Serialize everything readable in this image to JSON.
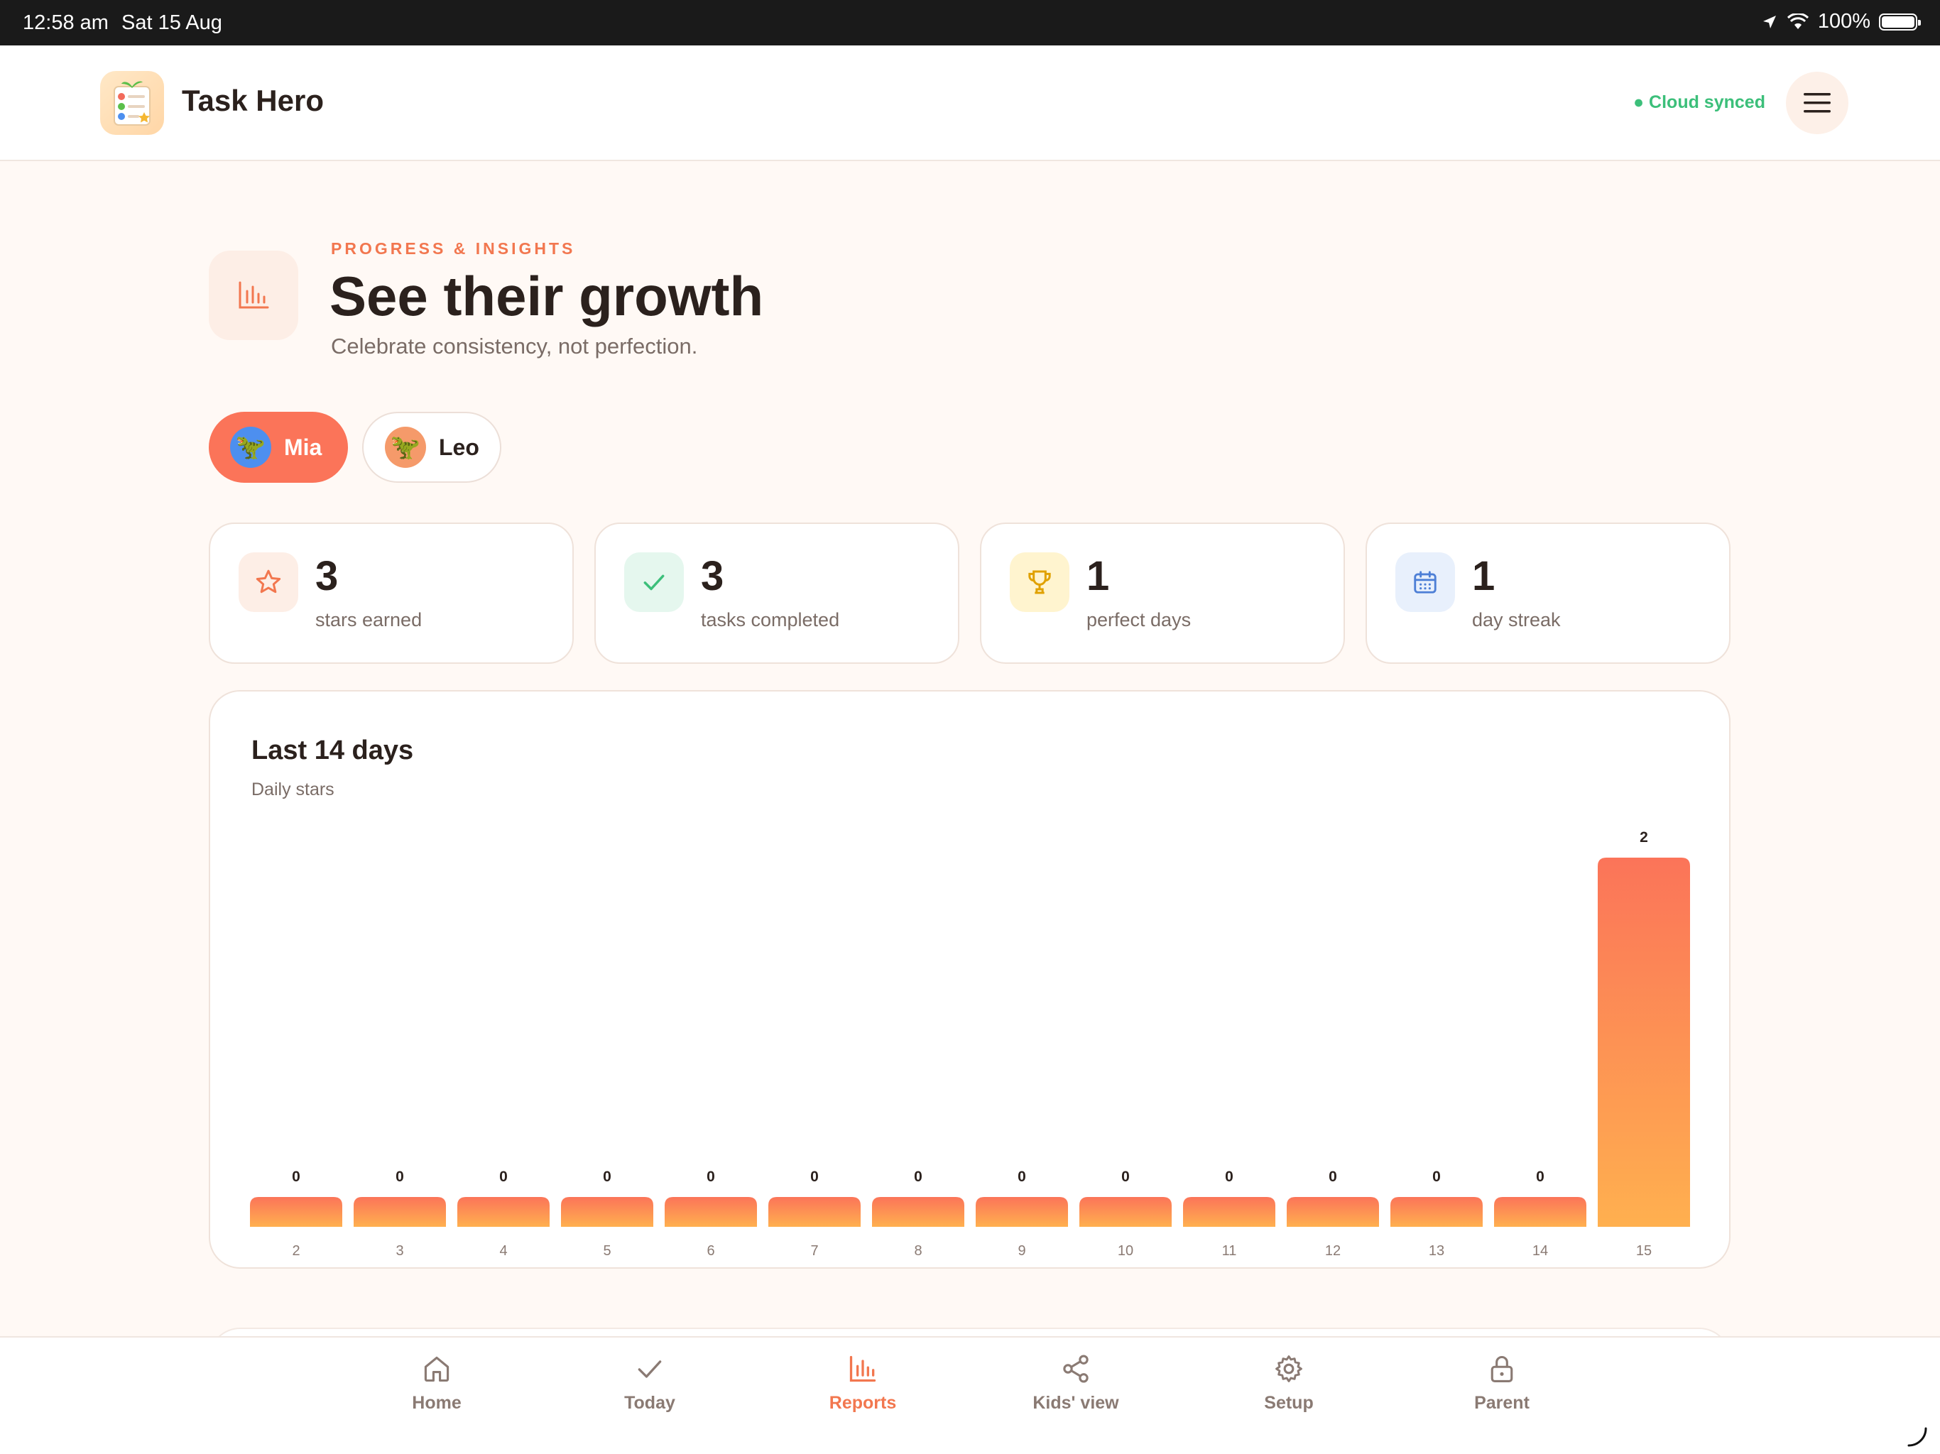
{
  "status_bar": {
    "time": "12:58 am",
    "date": "Sat 15 Aug",
    "battery": "100%",
    "battery_level": 1.0
  },
  "header": {
    "app_name": "Task Hero",
    "sync_status": "● Cloud synced"
  },
  "hero": {
    "eyebrow": "PROGRESS & INSIGHTS",
    "title": "See their growth",
    "subtitle": "Celebrate consistency, not perfection."
  },
  "kids": [
    {
      "name": "Mia",
      "avatar": "🦖",
      "selected": true
    },
    {
      "name": "Leo",
      "avatar": "🦖",
      "selected": false
    }
  ],
  "stats": [
    {
      "value": "3",
      "label": "stars earned",
      "icon": "star-icon",
      "color": "#f2774f"
    },
    {
      "value": "3",
      "label": "tasks completed",
      "icon": "check-icon",
      "color": "#3cbf7a"
    },
    {
      "value": "1",
      "label": "perfect days",
      "icon": "trophy-icon",
      "color": "#e0a100"
    },
    {
      "value": "1",
      "label": "day streak",
      "icon": "calendar-icon",
      "color": "#4d7fd6"
    }
  ],
  "chart_card": {
    "title": "Last 14 days",
    "subtitle": "Daily stars"
  },
  "chart_data": {
    "type": "bar",
    "categories": [
      "2",
      "3",
      "4",
      "5",
      "6",
      "7",
      "8",
      "9",
      "10",
      "11",
      "12",
      "13",
      "14",
      "15"
    ],
    "values": [
      0,
      0,
      0,
      0,
      0,
      0,
      0,
      0,
      0,
      0,
      0,
      0,
      0,
      2
    ],
    "title": "Last 14 days",
    "subtitle": "Daily stars",
    "ylim": [
      0,
      2
    ],
    "grid": false,
    "legend": "none",
    "colors": {
      "bar_top": "#fb7459",
      "bar_bottom": "#ffb04f",
      "zero_bar": "#fb8a57"
    }
  },
  "tabs": [
    {
      "label": "Home",
      "icon": "home-icon",
      "active": false
    },
    {
      "label": "Today",
      "icon": "check-icon",
      "active": false
    },
    {
      "label": "Reports",
      "icon": "bar-chart-icon",
      "active": true
    },
    {
      "label": "Kids' view",
      "icon": "share-icon",
      "active": false
    },
    {
      "label": "Setup",
      "icon": "gear-icon",
      "active": false
    },
    {
      "label": "Parent",
      "icon": "lock-icon",
      "active": false
    }
  ],
  "colors": {
    "accent": "#f2774f",
    "background": "#fff9f5",
    "sync": "#3cbf7a"
  }
}
